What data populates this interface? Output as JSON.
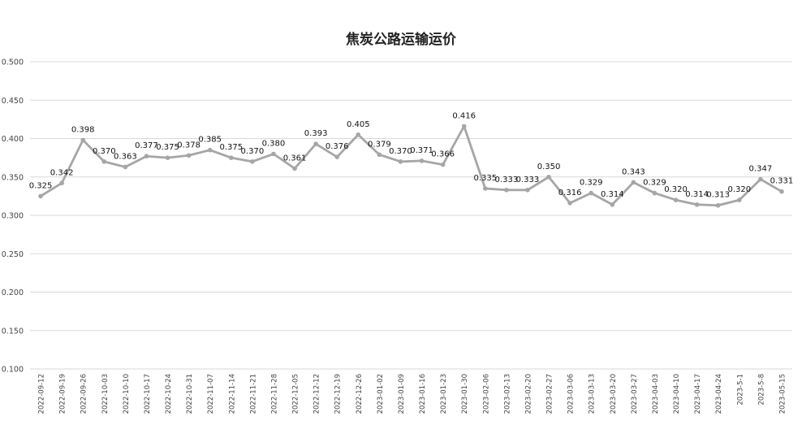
{
  "chart_data": {
    "type": "line",
    "title": "焦炭公路运输运价",
    "xlabel": "",
    "ylabel": "",
    "ylim": [
      0.1,
      0.5
    ],
    "ytick_labels": [
      "0.100",
      "0.150",
      "0.200",
      "0.250",
      "0.300",
      "0.350",
      "0.400",
      "0.450",
      "0.500"
    ],
    "yticks": [
      0.1,
      0.15,
      0.2,
      0.25,
      0.3,
      0.35,
      0.4,
      0.45,
      0.5
    ],
    "grid": true,
    "legend": "none",
    "line_color": "#a6a6a6",
    "categories": [
      "2022-09-12",
      "2022-09-19",
      "2022-09-26",
      "2022-10-03",
      "2022-10-10",
      "2022-10-17",
      "2022-10-24",
      "2022-10-31",
      "2022-11-07",
      "2022-11-14",
      "2022-11-21",
      "2022-11-28",
      "2022-12-05",
      "2022-12-12",
      "2022-12-19",
      "2022-12-26",
      "2023-01-02",
      "2023-01-09",
      "2023-01-16",
      "2023-01-23",
      "2023-01-30",
      "2023-02-06",
      "2023-02-13",
      "2023-02-20",
      "2023-02-27",
      "2023-03-06",
      "2023-03-13",
      "2023-03-20",
      "2023-03-27",
      "2023-04-03",
      "2023-04-10",
      "2023-04-17",
      "2023-04-24",
      "2023-5-1",
      "2023-5-8",
      "2023-05-15"
    ],
    "series": [
      {
        "values": [
          0.325,
          0.342,
          0.398,
          0.37,
          0.363,
          0.377,
          0.375,
          0.378,
          0.385,
          0.375,
          0.37,
          0.38,
          0.361,
          0.393,
          0.376,
          0.405,
          0.379,
          0.37,
          0.371,
          0.366,
          0.416,
          0.335,
          0.333,
          0.333,
          0.35,
          0.316,
          0.329,
          0.314,
          0.343,
          0.329,
          0.32,
          0.314,
          0.313,
          0.32,
          0.347,
          0.331
        ],
        "labels": [
          "0.325",
          "0.342",
          "0.398",
          "0.370",
          "0.363",
          "0.377",
          "0.375",
          "0.378",
          "0.385",
          "0.375",
          "0.370",
          "0.380",
          "0.361",
          "0.393",
          "0.376",
          "0.405",
          "0.379",
          "0.370",
          "0.371",
          "0.366",
          "0.416",
          "0.335",
          "0.333",
          "0.333",
          "0.350",
          "0.316",
          "0.329",
          "0.314",
          "0.343",
          "0.329",
          "0.320",
          "0.314",
          "0.313",
          "0.320",
          "0.347",
          "0.331"
        ]
      }
    ]
  }
}
